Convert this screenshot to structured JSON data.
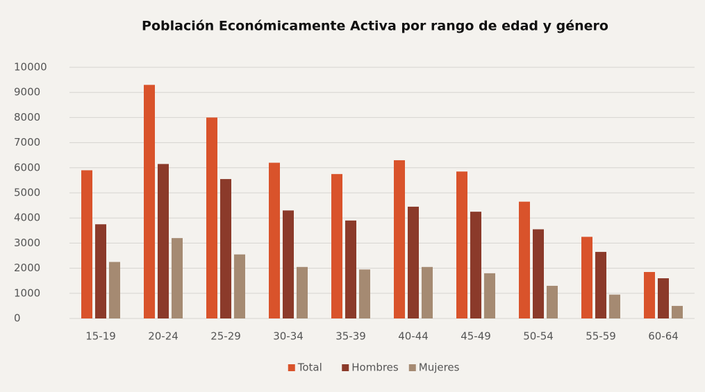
{
  "chart_data": {
    "type": "bar",
    "title": "Población Económicamente Activa por rango de edad y género",
    "categories": [
      "15-19",
      "20-24",
      "25-29",
      "30-34",
      "35-39",
      "40-44",
      "45-49",
      "50-54",
      "55-59",
      "60-64"
    ],
    "series": [
      {
        "name": "Total",
        "color": "#d9532b",
        "values": [
          5900,
          9300,
          8000,
          6200,
          5750,
          6300,
          5850,
          4650,
          3250,
          1850
        ]
      },
      {
        "name": "Hombres",
        "color": "#8b3a2a",
        "values": [
          3750,
          6150,
          5550,
          4300,
          3900,
          4450,
          4250,
          3550,
          2650,
          1600
        ]
      },
      {
        "name": "Mujeres",
        "color": "#a58a72",
        "values": [
          2250,
          3200,
          2550,
          2050,
          1950,
          2050,
          1800,
          1300,
          950,
          500
        ]
      }
    ],
    "ylim": [
      0,
      10000
    ],
    "yticks": [
      0,
      1000,
      2000,
      3000,
      4000,
      5000,
      6000,
      7000,
      8000,
      9000,
      10000
    ],
    "grid": true,
    "legend": "bottom"
  }
}
